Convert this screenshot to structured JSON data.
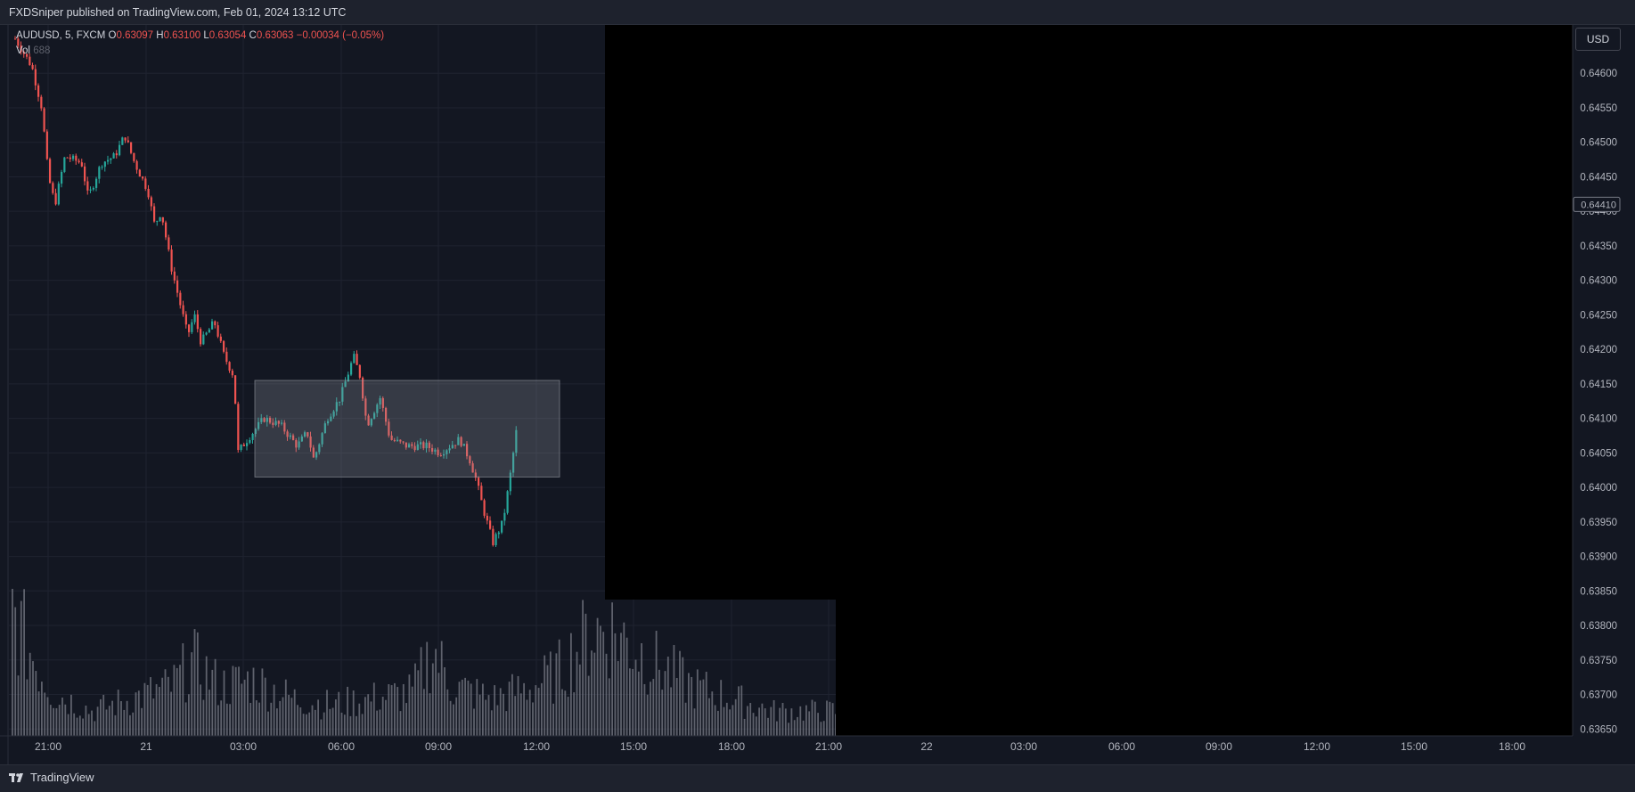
{
  "header": {
    "published_text": "FXDSniper published on TradingView.com, Feb 01, 2024 13:12 UTC"
  },
  "legend": {
    "symbol": "AUDUSD, 5, FXCM",
    "o_label": "O",
    "o_value": "0.63097",
    "h_label": "H",
    "h_value": "0.63100",
    "l_label": "L",
    "l_value": "0.63054",
    "c_label": "C",
    "c_value": "0.63063",
    "change": "−0.00034 (−0.05%)",
    "vol_label": "Vol",
    "vol_value": "688"
  },
  "currency_button": "USD",
  "current_price_label": "0.64410",
  "footer": {
    "logo_text": "TradingView"
  },
  "colors": {
    "background": "#131722",
    "up": "#26a69a",
    "down": "#ef5350",
    "grid": "#1f2330",
    "range_box": "#9598a1",
    "volume": "#787b86",
    "mask": "#000000"
  },
  "chart_data": {
    "type": "candlestick",
    "ylim": [
      0.6364,
      0.6467
    ],
    "y_ticks": [
      "0.64600",
      "0.64550",
      "0.64500",
      "0.64450",
      "0.64400",
      "0.64350",
      "0.64300",
      "0.64250",
      "0.64200",
      "0.64150",
      "0.64100",
      "0.64050",
      "0.64000",
      "0.63950",
      "0.63900",
      "0.63850",
      "0.63800",
      "0.63750",
      "0.63700",
      "0.63650"
    ],
    "x_ticks": [
      "21:00",
      "21",
      "03:00",
      "06:00",
      "09:00",
      "12:00",
      "15:00",
      "18:00",
      "21:00",
      "22",
      "03:00",
      "06:00",
      "09:00",
      "12:00",
      "15:00",
      "18:00"
    ],
    "range_box": {
      "high": 0.64155,
      "low": 0.64015
    },
    "price_path": [
      [
        0,
        0.6465
      ],
      [
        5,
        0.6461
      ],
      [
        8,
        0.6455
      ],
      [
        10,
        0.6445
      ],
      [
        12,
        0.6441
      ],
      [
        15,
        0.6448
      ],
      [
        20,
        0.6447
      ],
      [
        22,
        0.6442
      ],
      [
        26,
        0.6447
      ],
      [
        30,
        0.6448
      ],
      [
        33,
        0.6451
      ],
      [
        36,
        0.6447
      ],
      [
        40,
        0.6443
      ],
      [
        42,
        0.6438
      ],
      [
        44,
        0.644
      ],
      [
        47,
        0.6432
      ],
      [
        50,
        0.6426
      ],
      [
        52,
        0.6422
      ],
      [
        54,
        0.6425
      ],
      [
        56,
        0.6421
      ],
      [
        60,
        0.6424
      ],
      [
        63,
        0.6419
      ],
      [
        66,
        0.6416
      ],
      [
        67,
        0.6405
      ],
      [
        70,
        0.6407
      ],
      [
        75,
        0.641
      ],
      [
        80,
        0.6409
      ],
      [
        85,
        0.6406
      ],
      [
        88,
        0.6408
      ],
      [
        90,
        0.6404
      ],
      [
        94,
        0.641
      ],
      [
        98,
        0.6413
      ],
      [
        102,
        0.6419
      ],
      [
        104,
        0.6416
      ],
      [
        106,
        0.6409
      ],
      [
        110,
        0.6413
      ],
      [
        113,
        0.6407
      ],
      [
        118,
        0.6406
      ],
      [
        124,
        0.6406
      ],
      [
        128,
        0.6405
      ],
      [
        134,
        0.6407
      ],
      [
        137,
        0.6404
      ],
      [
        139,
        0.6401
      ],
      [
        141,
        0.6397
      ],
      [
        144,
        0.6392
      ],
      [
        147,
        0.6395
      ],
      [
        149,
        0.6401
      ],
      [
        151,
        0.6408
      ]
    ],
    "volume_profile": [
      [
        0,
        200
      ],
      [
        5,
        130
      ],
      [
        10,
        70
      ],
      [
        20,
        40
      ],
      [
        30,
        60
      ],
      [
        40,
        80
      ],
      [
        45,
        120
      ],
      [
        52,
        80
      ],
      [
        60,
        90
      ],
      [
        70,
        60
      ],
      [
        80,
        50
      ],
      [
        90,
        60
      ],
      [
        100,
        70
      ],
      [
        105,
        140
      ],
      [
        110,
        80
      ],
      [
        120,
        60
      ],
      [
        130,
        80
      ],
      [
        136,
        100
      ],
      [
        145,
        170
      ],
      [
        150,
        170
      ],
      [
        160,
        120
      ],
      [
        170,
        80
      ],
      [
        180,
        60
      ],
      [
        190,
        40
      ],
      [
        208,
        40
      ]
    ]
  }
}
